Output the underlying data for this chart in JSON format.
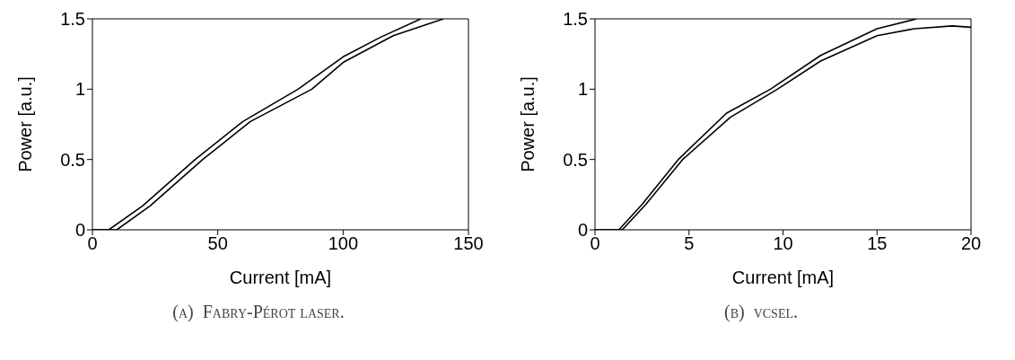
{
  "chart_data": [
    {
      "type": "line",
      "xlabel": "Current [mA]",
      "ylabel": "Power [a.u.]",
      "xlim": [
        0,
        150
      ],
      "xticks": [
        0,
        50,
        100,
        150
      ],
      "ylim": [
        0,
        1.5
      ],
      "yticks": [
        0,
        0.5,
        1,
        1.5
      ],
      "marker": "none",
      "line_style": "solid",
      "annotations": [
        "(a)  Fabry-Pérot laser."
      ],
      "series": [
        {
          "color": "#000000",
          "x": [
            0,
            6.5,
            20,
            41,
            60,
            82,
            100,
            115,
            131
          ],
          "values": [
            0,
            0,
            0.17,
            0.5,
            0.77,
            1.0,
            1.23,
            1.37,
            1.5
          ]
        },
        {
          "color": "#000000",
          "x": [
            0,
            9.7,
            23,
            44,
            63,
            87.5,
            100,
            120,
            140
          ],
          "values": [
            0,
            0,
            0.17,
            0.5,
            0.77,
            1.0,
            1.19,
            1.38,
            1.5
          ]
        }
      ]
    },
    {
      "type": "line",
      "xlabel": "Current [mA]",
      "ylabel": "Power [a.u.]",
      "xlim": [
        0,
        20
      ],
      "xticks": [
        0,
        5,
        10,
        15,
        20
      ],
      "ylim": [
        0,
        1.5
      ],
      "yticks": [
        0,
        0.5,
        1,
        1.5
      ],
      "marker": "none",
      "line_style": "solid",
      "annotations": [
        "(b)  vcsel."
      ],
      "series": [
        {
          "color": "#000000",
          "x": [
            0,
            1.27,
            2.5,
            4.43,
            7,
            9.33,
            12,
            15,
            17.1
          ],
          "values": [
            0,
            0,
            0.18,
            0.5,
            0.83,
            1.0,
            1.24,
            1.43,
            1.5
          ]
        },
        {
          "color": "#000000",
          "x": [
            0,
            1.45,
            2.7,
            4.66,
            7.2,
            9.7,
            12,
            15,
            17,
            19,
            20
          ],
          "values": [
            0,
            0,
            0.18,
            0.5,
            0.8,
            1.0,
            1.2,
            1.38,
            1.43,
            1.45,
            1.44
          ]
        }
      ]
    }
  ]
}
